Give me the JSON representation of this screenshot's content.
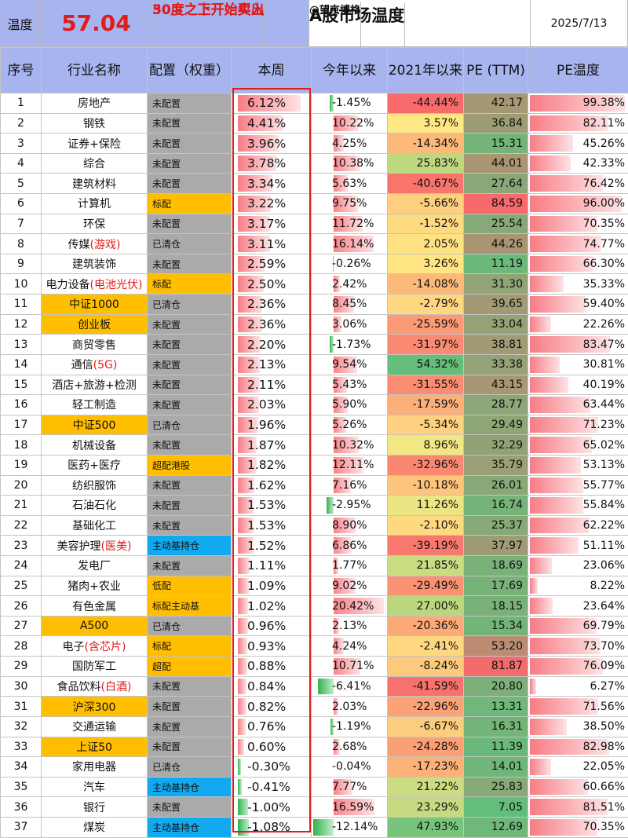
{
  "header": {
    "label": "温度",
    "value": "57.04",
    "note_line1": "30度之下开始买入",
    "note_line2": "50度之上开始卖出",
    "title": "A股市场温度",
    "author": "@望京博格",
    "date": "2025/7/13"
  },
  "columns": [
    "序号",
    "行业名称",
    "配置（权重）",
    "本周",
    "今年以来",
    "2021年以来",
    "PE (TTM)",
    "PE温度"
  ],
  "colors": {
    "header_bg": "#a8b4ee",
    "accent_red": "#e01b1b",
    "config_gray": "#aaaaaa",
    "config_orange": "#ffbf00",
    "config_blue": "#11a9ef",
    "bar_red": "#f87c84",
    "bar_green": "#2fb44d"
  },
  "rows": [
    {
      "idx": "1",
      "name": "房地产",
      "cfg": "未配置",
      "week": "6.12%",
      "ytd": "-1.45%",
      "since": "-44.44%",
      "pe": "42.17",
      "pet": "99.38%"
    },
    {
      "idx": "2",
      "name": "钢铁",
      "cfg": "未配置",
      "week": "4.41%",
      "ytd": "10.22%",
      "since": "3.57%",
      "pe": "36.84",
      "pet": "82.11%"
    },
    {
      "idx": "3",
      "name": "证券+保险",
      "cfg": "未配置",
      "week": "3.96%",
      "ytd": "4.25%",
      "since": "-14.34%",
      "pe": "15.31",
      "pet": "45.26%"
    },
    {
      "idx": "4",
      "name": "综合",
      "cfg": "未配置",
      "week": "3.78%",
      "ytd": "10.38%",
      "since": "25.83%",
      "pe": "44.01",
      "pet": "42.33%"
    },
    {
      "idx": "5",
      "name": "建筑材料",
      "cfg": "未配置",
      "week": "3.34%",
      "ytd": "5.63%",
      "since": "-40.67%",
      "pe": "27.64",
      "pet": "76.42%"
    },
    {
      "idx": "6",
      "name": "计算机",
      "cfg": "标配",
      "week": "3.22%",
      "ytd": "9.75%",
      "since": "-5.66%",
      "pe": "84.59",
      "pet": "96.00%"
    },
    {
      "idx": "7",
      "name": "环保",
      "cfg": "未配置",
      "week": "3.17%",
      "ytd": "11.72%",
      "since": "-1.52%",
      "pe": "25.54",
      "pet": "70.35%"
    },
    {
      "idx": "8",
      "name": "传媒",
      "name_red": "(游戏)",
      "cfg": "已清仓",
      "week": "3.11%",
      "ytd": "16.14%",
      "since": "2.05%",
      "pe": "44.26",
      "pet": "74.77%"
    },
    {
      "idx": "9",
      "name": "建筑装饰",
      "cfg": "未配置",
      "week": "2.59%",
      "ytd": "-0.26%",
      "since": "3.26%",
      "pe": "11.19",
      "pet": "66.30%"
    },
    {
      "idx": "10",
      "name": "电力设备",
      "name_red": "(电池光伏)",
      "cfg": "标配",
      "week": "2.50%",
      "ytd": "2.42%",
      "since": "-14.08%",
      "pe": "31.30",
      "pet": "35.33%"
    },
    {
      "idx": "11",
      "name": "中证1000",
      "cfg": "已清仓",
      "week": "2.36%",
      "ytd": "8.45%",
      "since": "-2.79%",
      "pe": "39.65",
      "pet": "59.40%"
    },
    {
      "idx": "12",
      "name": "创业板",
      "cfg": "未配置",
      "week": "2.36%",
      "ytd": "3.06%",
      "since": "-25.59%",
      "pe": "33.04",
      "pet": "22.26%"
    },
    {
      "idx": "13",
      "name": "商贸零售",
      "cfg": "未配置",
      "week": "2.20%",
      "ytd": "-1.73%",
      "since": "-31.97%",
      "pe": "38.81",
      "pet": "83.47%"
    },
    {
      "idx": "14",
      "name": "通信",
      "name_red": "(5G)",
      "cfg": "未配置",
      "week": "2.13%",
      "ytd": "9.54%",
      "since": "54.32%",
      "pe": "33.38",
      "pet": "30.81%"
    },
    {
      "idx": "15",
      "name": "酒店+旅游+检测",
      "cfg": "未配置",
      "week": "2.11%",
      "ytd": "5.43%",
      "since": "-31.55%",
      "pe": "43.15",
      "pet": "40.19%"
    },
    {
      "idx": "16",
      "name": "轻工制造",
      "cfg": "未配置",
      "week": "2.03%",
      "ytd": "5.90%",
      "since": "-17.59%",
      "pe": "28.77",
      "pet": "63.44%"
    },
    {
      "idx": "17",
      "name": "中证500",
      "cfg": "已清仓",
      "week": "1.96%",
      "ytd": "5.26%",
      "since": "-5.34%",
      "pe": "29.49",
      "pet": "71.23%"
    },
    {
      "idx": "18",
      "name": "机械设备",
      "cfg": "未配置",
      "week": "1.87%",
      "ytd": "10.32%",
      "since": "8.96%",
      "pe": "32.29",
      "pet": "65.02%"
    },
    {
      "idx": "19",
      "name": "医药+医疗",
      "cfg": "超配港股",
      "week": "1.82%",
      "ytd": "12.11%",
      "since": "-32.96%",
      "pe": "35.79",
      "pet": "53.13%"
    },
    {
      "idx": "20",
      "name": "纺织服饰",
      "cfg": "未配置",
      "week": "1.62%",
      "ytd": "7.16%",
      "since": "-10.18%",
      "pe": "26.01",
      "pet": "55.77%"
    },
    {
      "idx": "21",
      "name": "石油石化",
      "cfg": "未配置",
      "week": "1.53%",
      "ytd": "-2.95%",
      "since": "11.26%",
      "pe": "16.74",
      "pet": "55.84%"
    },
    {
      "idx": "22",
      "name": "基础化工",
      "cfg": "未配置",
      "week": "1.53%",
      "ytd": "8.90%",
      "since": "-2.10%",
      "pe": "25.37",
      "pet": "62.22%"
    },
    {
      "idx": "23",
      "name": "美容护理",
      "name_red": "(医美)",
      "cfg": "主动基持仓",
      "week": "1.52%",
      "ytd": "6.86%",
      "since": "-39.19%",
      "pe": "37.97",
      "pet": "51.11%"
    },
    {
      "idx": "24",
      "name": "发电厂",
      "cfg": "未配置",
      "week": "1.11%",
      "ytd": "1.77%",
      "since": "21.85%",
      "pe": "18.69",
      "pet": "23.06%"
    },
    {
      "idx": "25",
      "name": "猪肉+农业",
      "cfg": "低配",
      "week": "1.09%",
      "ytd": "9.02%",
      "since": "-29.49%",
      "pe": "17.69",
      "pet": "8.22%"
    },
    {
      "idx": "26",
      "name": "有色金属",
      "cfg": "标配主动基",
      "week": "1.02%",
      "ytd": "20.42%",
      "since": "27.00%",
      "pe": "18.15",
      "pet": "23.64%"
    },
    {
      "idx": "27",
      "name": "A500",
      "cfg": "已清仓",
      "week": "0.96%",
      "ytd": "2.13%",
      "since": "-20.36%",
      "pe": "15.34",
      "pet": "69.79%"
    },
    {
      "idx": "28",
      "name": "电子",
      "name_red": "(含芯片)",
      "cfg": "标配",
      "week": "0.93%",
      "ytd": "4.24%",
      "since": "-2.41%",
      "pe": "53.20",
      "pet": "73.70%"
    },
    {
      "idx": "29",
      "name": "国防军工",
      "cfg": "超配",
      "week": "0.88%",
      "ytd": "10.71%",
      "since": "-8.24%",
      "pe": "81.87",
      "pet": "76.09%"
    },
    {
      "idx": "30",
      "name": "食品饮料",
      "name_red": "(白酒)",
      "cfg": "未配置",
      "week": "0.84%",
      "ytd": "-6.41%",
      "since": "-41.59%",
      "pe": "20.80",
      "pet": "6.27%"
    },
    {
      "idx": "31",
      "name": "沪深300",
      "cfg": "未配置",
      "week": "0.82%",
      "ytd": "2.03%",
      "since": "-22.96%",
      "pe": "13.31",
      "pet": "71.56%"
    },
    {
      "idx": "32",
      "name": "交通运输",
      "cfg": "未配置",
      "week": "0.76%",
      "ytd": "-1.19%",
      "since": "-6.67%",
      "pe": "16.31",
      "pet": "38.50%"
    },
    {
      "idx": "33",
      "name": "上证50",
      "cfg": "未配置",
      "week": "0.60%",
      "ytd": "2.68%",
      "since": "-24.28%",
      "pe": "11.39",
      "pet": "82.98%"
    },
    {
      "idx": "34",
      "name": "家用电器",
      "cfg": "已清仓",
      "week": "-0.30%",
      "ytd": "-0.04%",
      "since": "-17.23%",
      "pe": "14.01",
      "pet": "22.05%"
    },
    {
      "idx": "35",
      "name": "汽车",
      "cfg": "主动基持仓",
      "week": "-0.41%",
      "ytd": "7.77%",
      "since": "21.22%",
      "pe": "25.83",
      "pet": "60.66%"
    },
    {
      "idx": "36",
      "name": "银行",
      "cfg": "未配置",
      "week": "-1.00%",
      "ytd": "16.59%",
      "since": "23.29%",
      "pe": "7.05",
      "pet": "81.51%"
    },
    {
      "idx": "37",
      "name": "煤炭",
      "cfg": "主动基持仓",
      "week": "-1.08%",
      "ytd": "-12.14%",
      "since": "47.93%",
      "pe": "12.69",
      "pet": "70.35%"
    }
  ]
}
